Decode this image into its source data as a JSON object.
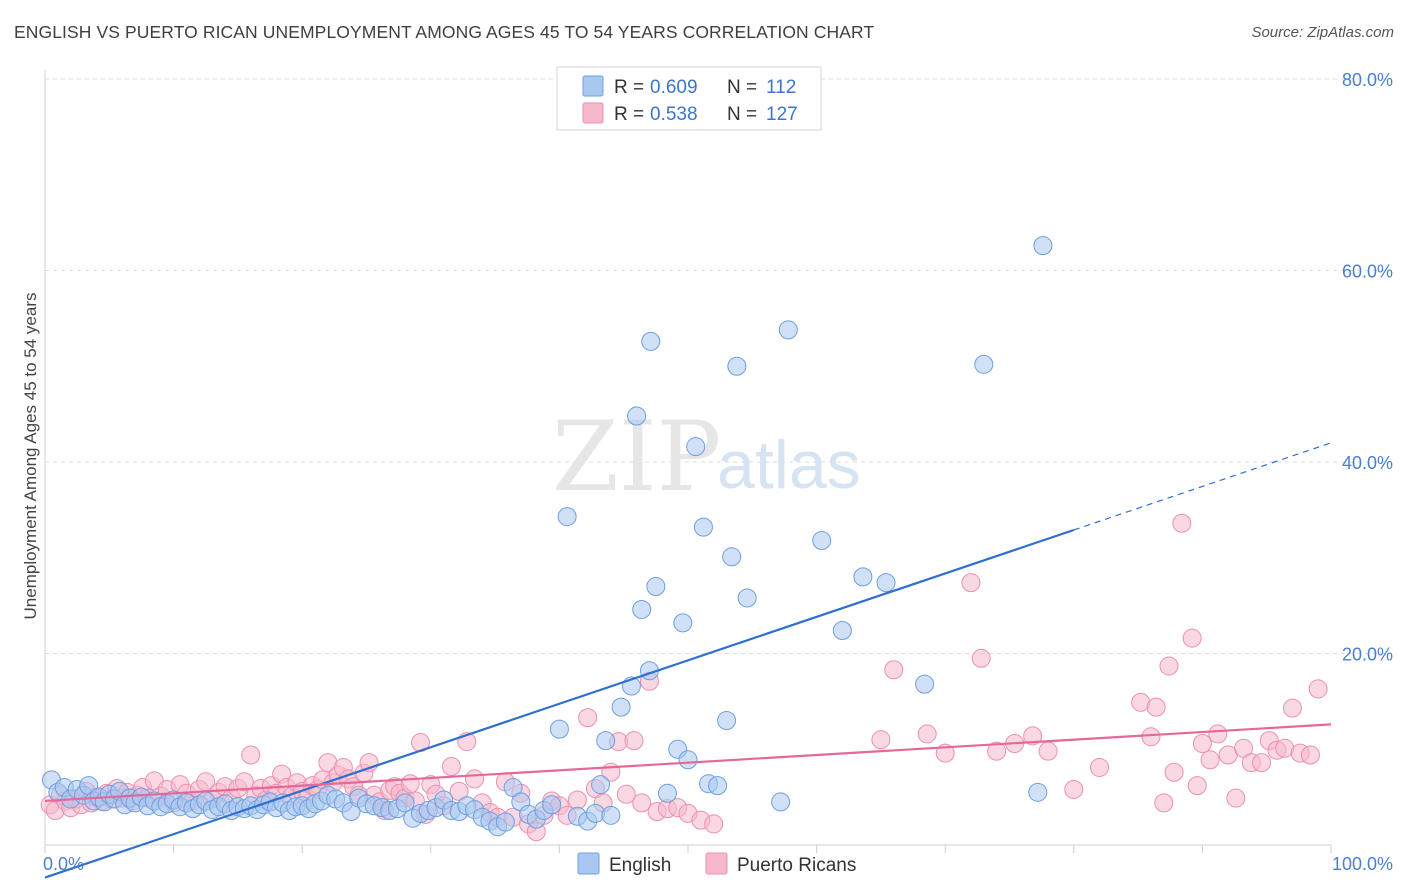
{
  "header": {
    "title": "ENGLISH VS PUERTO RICAN UNEMPLOYMENT AMONG AGES 45 TO 54 YEARS CORRELATION CHART",
    "source": "Source: ZipAtlas.com"
  },
  "watermark": {
    "zip": "ZIP",
    "atlas": "atlas"
  },
  "colors": {
    "english_fill": "#a9c8f0",
    "english_stroke": "#6d9fe0",
    "english_line": "#2e6fd0",
    "pr_fill": "#f6b8cc",
    "pr_stroke": "#ee8fae",
    "pr_line": "#e5689a",
    "tick_text": "#4a7fd0",
    "grid": "#dddddd"
  },
  "stats_legend": [
    {
      "r_label": "R =",
      "r_value": "0.609",
      "n_label": "N =",
      "n_value": "112"
    },
    {
      "r_label": "R =",
      "r_value": "0.538",
      "n_label": "N =",
      "n_value": "127"
    }
  ],
  "chart_data": {
    "type": "scatter",
    "title": "ENGLISH VS PUERTO RICAN UNEMPLOYMENT AMONG AGES 45 TO 54 YEARS CORRELATION CHART",
    "xlabel": "",
    "ylabel": "Unemployment Among Ages 45 to 54 years",
    "xlim": [
      0,
      100
    ],
    "ylim": [
      0,
      80
    ],
    "x_tick_labels": [
      "0.0%",
      "100.0%"
    ],
    "y_ticks": [
      20,
      40,
      60,
      80
    ],
    "y_tick_labels": [
      "20.0%",
      "40.0%",
      "60.0%",
      "80.0%"
    ],
    "grid": "horizontal dashed",
    "legend": "bottom-center",
    "series": [
      {
        "name": "English",
        "r": 0.609,
        "n": 112,
        "trend": {
          "x": [
            0,
            80
          ],
          "y": [
            -3.4,
            32.9
          ]
        },
        "trend_extension": {
          "x": [
            80,
            100
          ],
          "y": [
            32.9,
            42.0
          ]
        },
        "points": [
          [
            0.5,
            6.8
          ],
          [
            1.0,
            5.5
          ],
          [
            1.5,
            6.0
          ],
          [
            2.0,
            4.8
          ],
          [
            2.5,
            5.8
          ],
          [
            3.0,
            5.2
          ],
          [
            3.4,
            6.2
          ],
          [
            3.8,
            4.6
          ],
          [
            4.2,
            5.0
          ],
          [
            4.6,
            4.5
          ],
          [
            5.0,
            5.3
          ],
          [
            5.4,
            4.8
          ],
          [
            5.8,
            5.6
          ],
          [
            6.2,
            4.2
          ],
          [
            6.6,
            4.9
          ],
          [
            7.0,
            4.4
          ],
          [
            7.5,
            5.0
          ],
          [
            8.0,
            4.1
          ],
          [
            8.5,
            4.6
          ],
          [
            9.0,
            4.0
          ],
          [
            9.5,
            4.3
          ],
          [
            10.0,
            4.7
          ],
          [
            10.5,
            4.0
          ],
          [
            11.0,
            4.4
          ],
          [
            11.5,
            3.8
          ],
          [
            12.0,
            4.2
          ],
          [
            12.5,
            4.6
          ],
          [
            13.0,
            3.7
          ],
          [
            13.5,
            4.0
          ],
          [
            14.0,
            4.3
          ],
          [
            14.5,
            3.6
          ],
          [
            15.0,
            4.0
          ],
          [
            15.5,
            3.8
          ],
          [
            16.0,
            4.1
          ],
          [
            16.5,
            3.7
          ],
          [
            17.0,
            4.2
          ],
          [
            17.5,
            4.5
          ],
          [
            18.0,
            3.9
          ],
          [
            18.5,
            4.4
          ],
          [
            19.0,
            3.6
          ],
          [
            19.5,
            4.0
          ],
          [
            20.0,
            4.1
          ],
          [
            20.5,
            3.8
          ],
          [
            21.0,
            4.3
          ],
          [
            21.5,
            4.6
          ],
          [
            22.0,
            5.2
          ],
          [
            22.6,
            4.8
          ],
          [
            23.2,
            4.4
          ],
          [
            23.8,
            3.5
          ],
          [
            24.4,
            4.9
          ],
          [
            25.0,
            4.3
          ],
          [
            25.6,
            4.1
          ],
          [
            26.2,
            3.9
          ],
          [
            26.8,
            3.6
          ],
          [
            27.4,
            3.8
          ],
          [
            28.0,
            4.4
          ],
          [
            28.6,
            2.8
          ],
          [
            29.2,
            3.3
          ],
          [
            29.8,
            3.6
          ],
          [
            30.4,
            3.9
          ],
          [
            31.0,
            4.7
          ],
          [
            31.6,
            3.6
          ],
          [
            32.2,
            3.5
          ],
          [
            32.8,
            4.1
          ],
          [
            33.4,
            3.7
          ],
          [
            34.0,
            2.9
          ],
          [
            34.6,
            2.5
          ],
          [
            35.2,
            1.9
          ],
          [
            35.8,
            2.4
          ],
          [
            36.4,
            6.0
          ],
          [
            37.0,
            4.5
          ],
          [
            37.6,
            3.2
          ],
          [
            38.2,
            2.7
          ],
          [
            38.8,
            3.6
          ],
          [
            39.4,
            4.2
          ],
          [
            40.0,
            12.1
          ],
          [
            40.6,
            34.3
          ],
          [
            41.4,
            3.0
          ],
          [
            42.2,
            2.5
          ],
          [
            42.8,
            3.3
          ],
          [
            43.2,
            6.3
          ],
          [
            43.6,
            10.9
          ],
          [
            44.0,
            3.1
          ],
          [
            44.8,
            14.4
          ],
          [
            45.6,
            16.6
          ],
          [
            46.4,
            24.6
          ],
          [
            47.1,
            52.6
          ],
          [
            46.0,
            44.8
          ],
          [
            47.5,
            27.0
          ],
          [
            47.0,
            18.2
          ],
          [
            48.4,
            5.4
          ],
          [
            49.2,
            10.0
          ],
          [
            49.6,
            23.2
          ],
          [
            50.0,
            8.9
          ],
          [
            50.6,
            41.6
          ],
          [
            51.2,
            33.2
          ],
          [
            51.6,
            6.4
          ],
          [
            52.3,
            6.2
          ],
          [
            53.0,
            13.0
          ],
          [
            53.4,
            30.1
          ],
          [
            53.8,
            50.0
          ],
          [
            54.6,
            25.8
          ],
          [
            57.2,
            4.5
          ],
          [
            57.8,
            53.8
          ],
          [
            60.4,
            31.8
          ],
          [
            62.0,
            22.4
          ],
          [
            63.6,
            28.0
          ],
          [
            65.4,
            27.4
          ],
          [
            68.4,
            16.8
          ],
          [
            73.0,
            50.2
          ],
          [
            77.2,
            5.5
          ],
          [
            77.6,
            62.6
          ]
        ]
      },
      {
        "name": "Puerto Ricans",
        "r": 0.538,
        "n": 127,
        "trend": {
          "x": [
            0,
            100
          ],
          "y": [
            4.6,
            12.6
          ]
        },
        "points": [
          [
            0.4,
            4.2
          ],
          [
            0.8,
            3.6
          ],
          [
            1.2,
            5.2
          ],
          [
            1.6,
            4.6
          ],
          [
            2.0,
            3.9
          ],
          [
            2.4,
            4.8
          ],
          [
            2.8,
            4.2
          ],
          [
            3.2,
            5.6
          ],
          [
            3.6,
            4.4
          ],
          [
            4.0,
            5.0
          ],
          [
            4.4,
            4.6
          ],
          [
            4.8,
            5.4
          ],
          [
            5.2,
            4.8
          ],
          [
            5.6,
            5.9
          ],
          [
            6.0,
            4.9
          ],
          [
            6.4,
            5.5
          ],
          [
            6.8,
            4.6
          ],
          [
            7.2,
            5.2
          ],
          [
            7.6,
            6.0
          ],
          [
            8.0,
            4.9
          ],
          [
            8.5,
            6.7
          ],
          [
            9.0,
            5.1
          ],
          [
            9.5,
            5.8
          ],
          [
            10.0,
            4.4
          ],
          [
            10.5,
            6.3
          ],
          [
            11.0,
            5.4
          ],
          [
            11.5,
            4.6
          ],
          [
            12.0,
            5.8
          ],
          [
            12.5,
            6.6
          ],
          [
            13.0,
            4.8
          ],
          [
            13.5,
            5.5
          ],
          [
            14.0,
            6.1
          ],
          [
            14.5,
            4.9
          ],
          [
            15.0,
            5.9
          ],
          [
            15.5,
            6.6
          ],
          [
            16.0,
            9.4
          ],
          [
            16.4,
            5.2
          ],
          [
            16.8,
            5.9
          ],
          [
            17.2,
            4.7
          ],
          [
            17.6,
            6.2
          ],
          [
            18.0,
            5.4
          ],
          [
            18.4,
            7.4
          ],
          [
            18.8,
            6.0
          ],
          [
            19.2,
            5.1
          ],
          [
            19.6,
            6.5
          ],
          [
            20.0,
            5.6
          ],
          [
            20.4,
            4.9
          ],
          [
            20.8,
            6.2
          ],
          [
            21.2,
            5.8
          ],
          [
            21.6,
            6.8
          ],
          [
            22.0,
            8.6
          ],
          [
            22.4,
            6.5
          ],
          [
            22.8,
            7.3
          ],
          [
            23.2,
            8.1
          ],
          [
            23.6,
            6.9
          ],
          [
            24.0,
            6.1
          ],
          [
            24.4,
            5.2
          ],
          [
            24.8,
            7.5
          ],
          [
            25.2,
            8.6
          ],
          [
            25.6,
            5.2
          ],
          [
            26.0,
            4.5
          ],
          [
            26.4,
            3.6
          ],
          [
            26.8,
            5.7
          ],
          [
            27.2,
            6.1
          ],
          [
            27.6,
            5.4
          ],
          [
            28.0,
            4.9
          ],
          [
            28.4,
            6.4
          ],
          [
            28.8,
            4.6
          ],
          [
            29.2,
            10.7
          ],
          [
            29.6,
            3.2
          ],
          [
            30.0,
            6.3
          ],
          [
            30.4,
            5.3
          ],
          [
            31.0,
            4.1
          ],
          [
            31.6,
            8.2
          ],
          [
            32.2,
            5.6
          ],
          [
            32.8,
            10.8
          ],
          [
            33.4,
            6.9
          ],
          [
            34.0,
            4.4
          ],
          [
            34.6,
            3.4
          ],
          [
            35.2,
            2.9
          ],
          [
            35.8,
            6.6
          ],
          [
            36.4,
            2.9
          ],
          [
            37.0,
            5.4
          ],
          [
            37.6,
            2.2
          ],
          [
            38.2,
            1.4
          ],
          [
            38.8,
            3.1
          ],
          [
            39.4,
            4.6
          ],
          [
            40.0,
            4.1
          ],
          [
            40.6,
            3.1
          ],
          [
            41.4,
            4.7
          ],
          [
            42.2,
            13.3
          ],
          [
            42.8,
            5.9
          ],
          [
            43.4,
            4.4
          ],
          [
            44.0,
            7.6
          ],
          [
            44.6,
            10.8
          ],
          [
            45.2,
            5.3
          ],
          [
            45.8,
            10.9
          ],
          [
            46.4,
            4.4
          ],
          [
            47.0,
            17.1
          ],
          [
            47.6,
            3.5
          ],
          [
            48.4,
            3.8
          ],
          [
            49.2,
            3.9
          ],
          [
            50.0,
            3.3
          ],
          [
            51.0,
            2.6
          ],
          [
            52.0,
            2.2
          ],
          [
            65.0,
            11.0
          ],
          [
            66.0,
            18.3
          ],
          [
            68.6,
            11.6
          ],
          [
            70.0,
            9.6
          ],
          [
            72.0,
            27.4
          ],
          [
            72.8,
            19.5
          ],
          [
            74.0,
            9.8
          ],
          [
            75.4,
            10.6
          ],
          [
            76.8,
            11.4
          ],
          [
            78.0,
            9.8
          ],
          [
            80.0,
            5.8
          ],
          [
            82.0,
            8.1
          ],
          [
            85.2,
            14.9
          ],
          [
            86.0,
            11.3
          ],
          [
            86.4,
            14.4
          ],
          [
            87.0,
            4.4
          ],
          [
            87.4,
            18.7
          ],
          [
            87.8,
            7.6
          ],
          [
            88.4,
            33.6
          ],
          [
            89.2,
            21.6
          ],
          [
            89.6,
            6.2
          ],
          [
            90.0,
            10.6
          ],
          [
            90.6,
            8.9
          ],
          [
            91.2,
            11.6
          ],
          [
            92.0,
            9.4
          ],
          [
            92.6,
            4.9
          ],
          [
            93.2,
            10.1
          ],
          [
            93.8,
            8.6
          ],
          [
            94.6,
            8.6
          ],
          [
            95.2,
            10.9
          ],
          [
            95.8,
            9.9
          ],
          [
            96.4,
            10.1
          ],
          [
            97.0,
            14.3
          ],
          [
            97.6,
            9.6
          ],
          [
            98.4,
            9.4
          ],
          [
            99.0,
            16.3
          ]
        ]
      }
    ]
  }
}
